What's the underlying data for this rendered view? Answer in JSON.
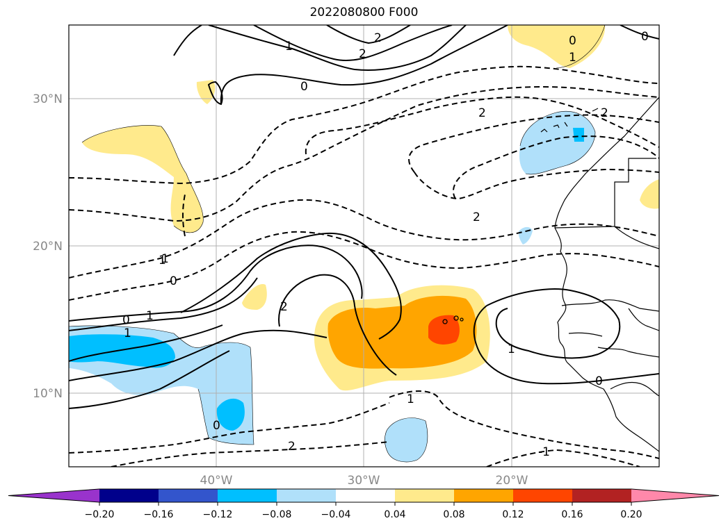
{
  "title": "2022080800 F000",
  "lat_labels": [
    {
      "text": "30°N",
      "lat": 30
    },
    {
      "text": "20°N",
      "lat": 20
    },
    {
      "text": "10°N",
      "lat": 10
    }
  ],
  "lon_labels": [
    {
      "text": "40°W",
      "lon": -40
    },
    {
      "text": "30°W",
      "lon": -30
    },
    {
      "text": "20°W",
      "lon": -20
    }
  ],
  "extent": {
    "lon_min": -50,
    "lon_max": -10,
    "lat_min": 5,
    "lat_max": 35
  },
  "contour_labels": [
    "2",
    "2",
    "1",
    "0",
    "2",
    "2",
    "1",
    "0",
    "0",
    "1",
    "2",
    "0",
    "1",
    "1",
    "0",
    "-1",
    "2",
    "1",
    "0",
    "0",
    "1",
    "2",
    "1"
  ],
  "colorbar": {
    "ticks": [
      "−0.20",
      "−0.16",
      "−0.12",
      "−0.08",
      "−0.04",
      "0.04",
      "0.08",
      "0.12",
      "0.16",
      "0.20"
    ],
    "colors": [
      "#9933cc",
      "#00008b",
      "#3355cc",
      "#00bfff",
      "#b0e0fa",
      "#ffffff",
      "#ffea8c",
      "#ffa500",
      "#ff4500",
      "#b22222",
      "#ff88aa"
    ]
  }
}
